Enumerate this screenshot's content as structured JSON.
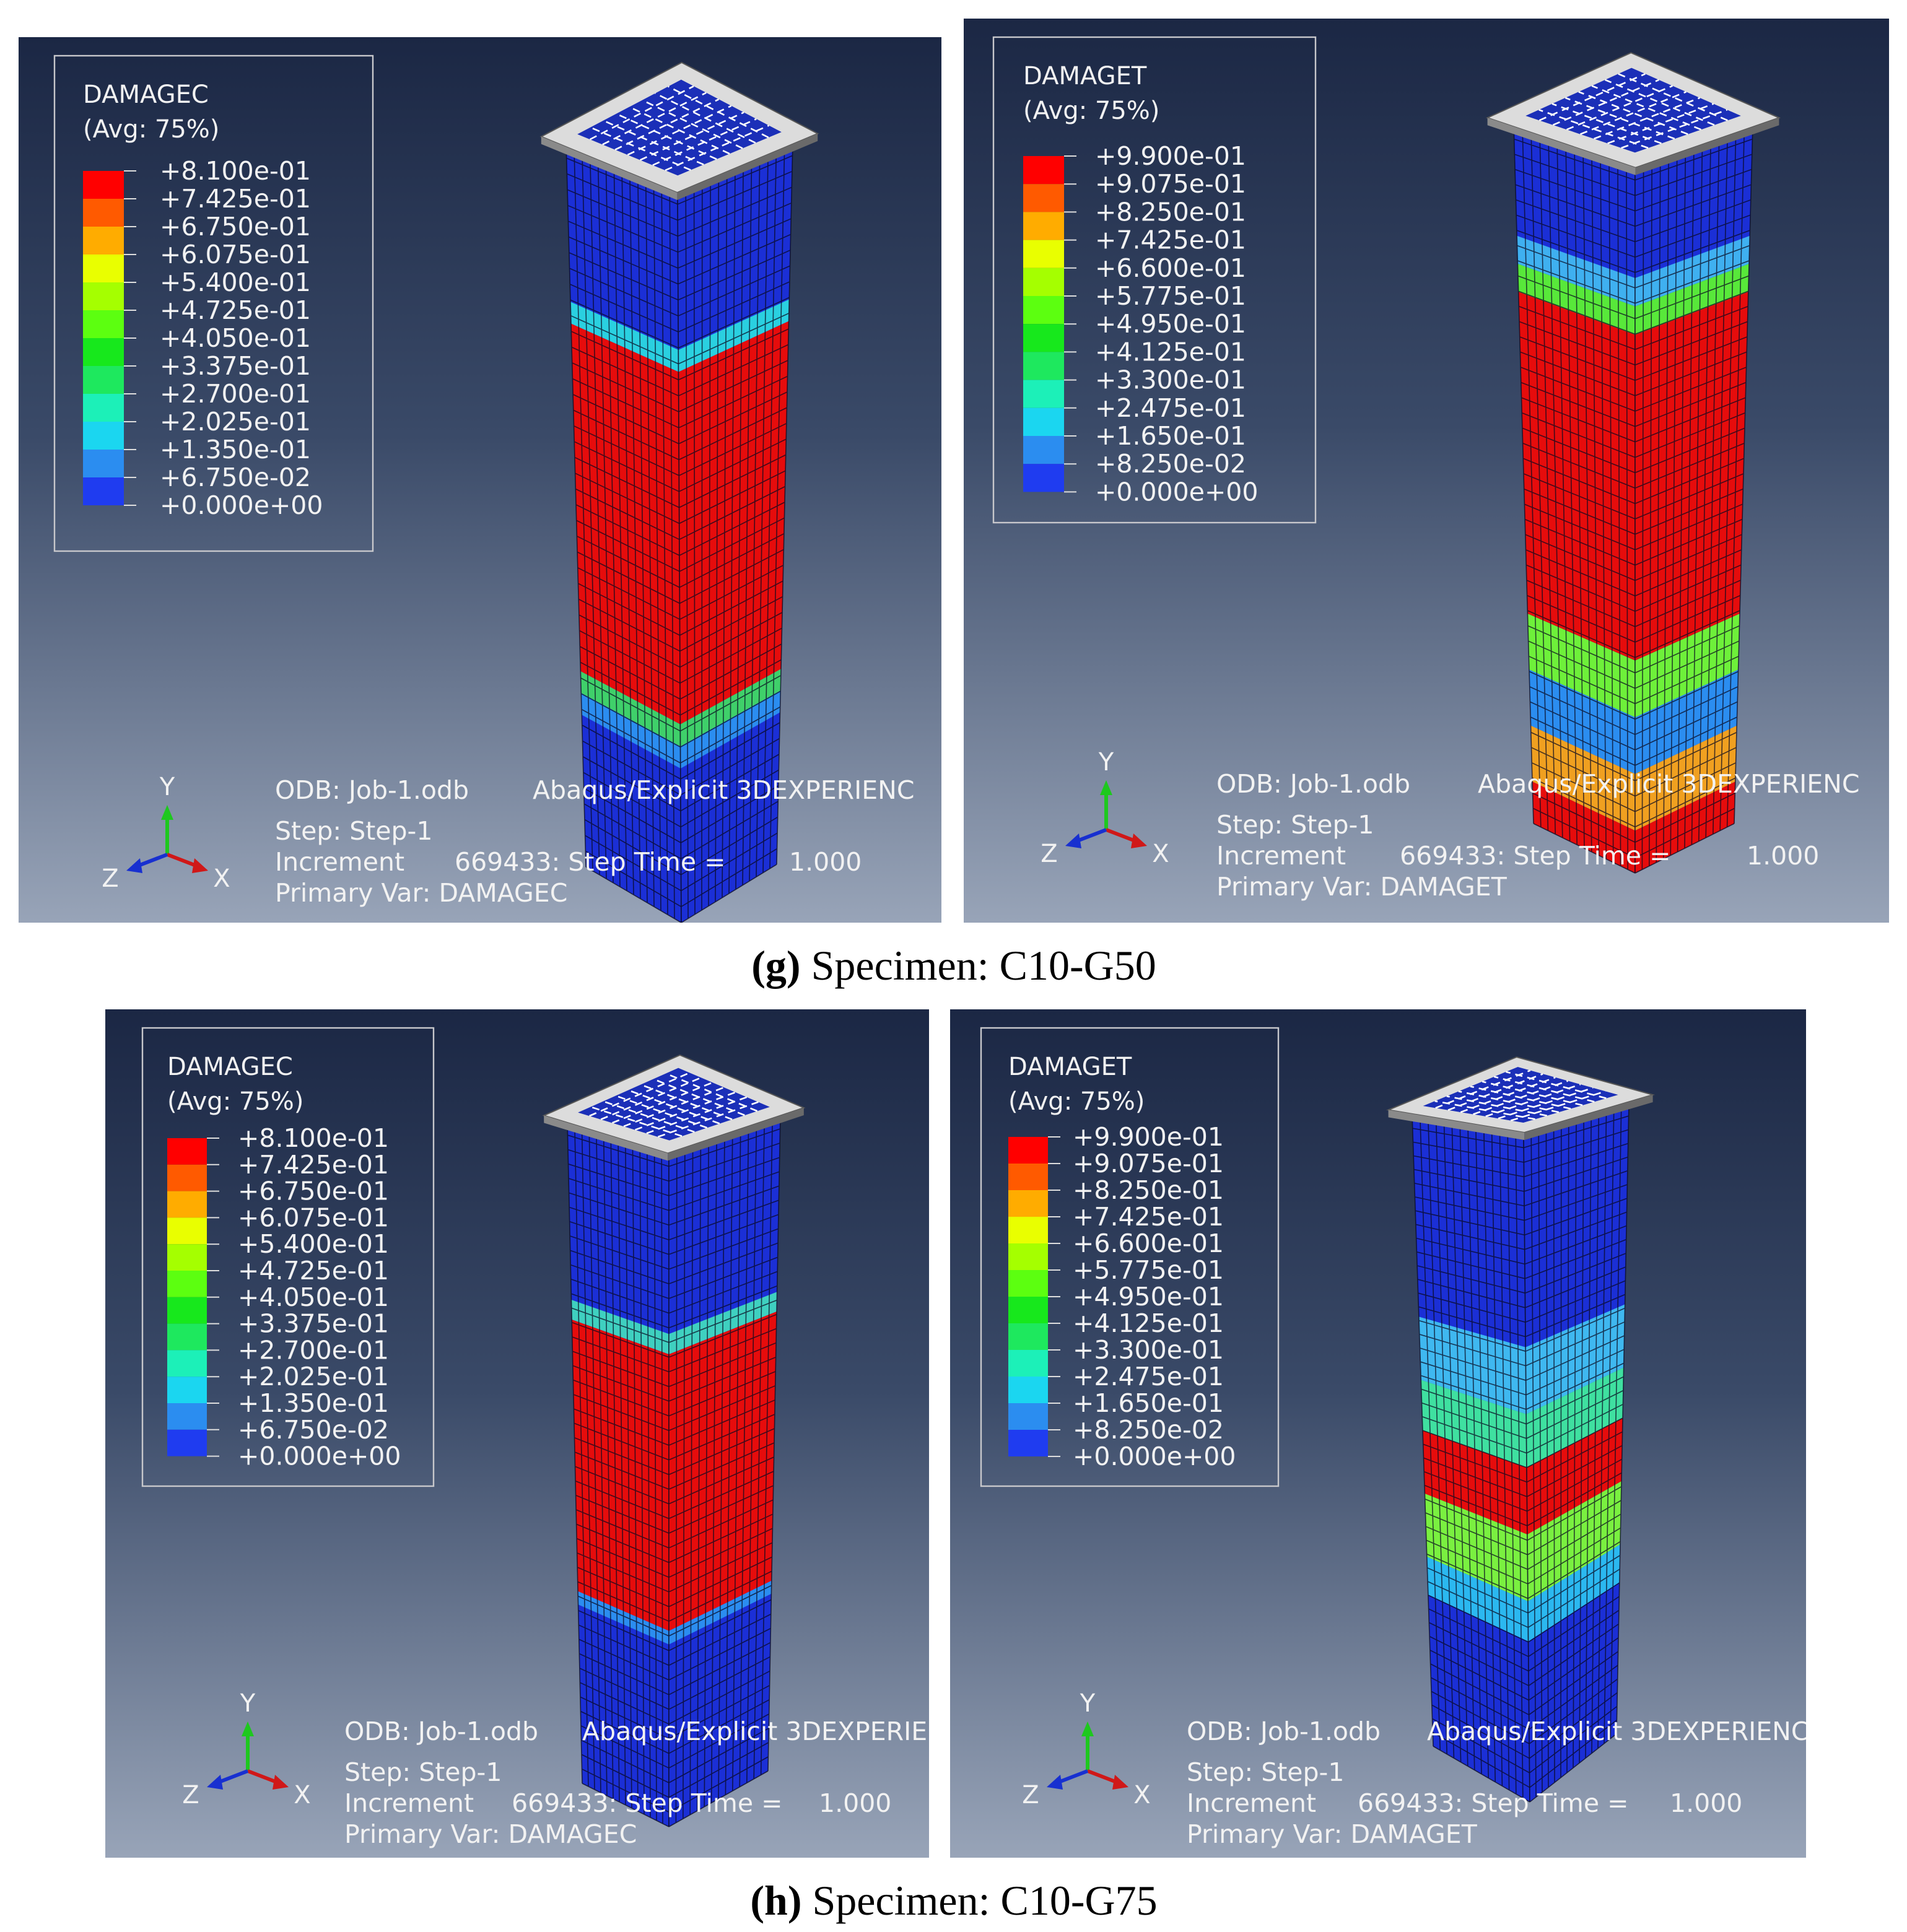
{
  "figure": {
    "panels": [
      {
        "legend": {
          "title": "DAMAGEC",
          "subtitle": "(Avg: 75%)",
          "levels": [
            "+8.100e-01",
            "+7.425e-01",
            "+6.750e-01",
            "+6.075e-01",
            "+5.400e-01",
            "+4.725e-01",
            "+4.050e-01",
            "+3.375e-01",
            "+2.700e-01",
            "+2.025e-01",
            "+1.350e-01",
            "+6.750e-02",
            "+0.000e+00"
          ]
        },
        "info": {
          "odb": "ODB: Job-1.odb",
          "software": "Abaqus/Explicit 3DEXPERIENC",
          "step": "Step: Step-1",
          "increment": "Increment",
          "increment_value": "669433: Step Time =",
          "time": "1.000",
          "primary_var": "Primary Var: DAMAGEC"
        },
        "axes": {
          "y": "Y",
          "z": "Z",
          "x": "X"
        }
      },
      {
        "legend": {
          "title": "DAMAGET",
          "subtitle": "(Avg: 75%)",
          "levels": [
            "+9.900e-01",
            "+9.075e-01",
            "+8.250e-01",
            "+7.425e-01",
            "+6.600e-01",
            "+5.775e-01",
            "+4.950e-01",
            "+4.125e-01",
            "+3.300e-01",
            "+2.475e-01",
            "+1.650e-01",
            "+8.250e-02",
            "+0.000e+00"
          ]
        },
        "info": {
          "odb": "ODB: Job-1.odb",
          "software": "Abaqus/Explicit 3DEXPERIENC",
          "step": "Step: Step-1",
          "increment": "Increment",
          "increment_value": "669433: Step Time =",
          "time": "1.000",
          "primary_var": "Primary Var: DAMAGET"
        },
        "axes": {
          "y": "Y",
          "z": "Z",
          "x": "X"
        }
      },
      {
        "legend": {
          "title": "DAMAGEC",
          "subtitle": "(Avg: 75%)",
          "levels": [
            "+8.100e-01",
            "+7.425e-01",
            "+6.750e-01",
            "+6.075e-01",
            "+5.400e-01",
            "+4.725e-01",
            "+4.050e-01",
            "+3.375e-01",
            "+2.700e-01",
            "+2.025e-01",
            "+1.350e-01",
            "+6.750e-02",
            "+0.000e+00"
          ]
        },
        "info": {
          "odb": "ODB: Job-1.odb",
          "software": "Abaqus/Explicit 3DEXPERIE",
          "step": "Step: Step-1",
          "increment": "Increment",
          "increment_value": "669433: Step Time =",
          "time": "1.000",
          "primary_var": "Primary Var: DAMAGEC"
        },
        "axes": {
          "y": "Y",
          "z": "Z",
          "x": "X"
        }
      },
      {
        "legend": {
          "title": "DAMAGET",
          "subtitle": "(Avg: 75%)",
          "levels": [
            "+9.900e-01",
            "+9.075e-01",
            "+8.250e-01",
            "+7.425e-01",
            "+6.600e-01",
            "+5.775e-01",
            "+4.950e-01",
            "+4.125e-01",
            "+3.300e-01",
            "+2.475e-01",
            "+1.650e-01",
            "+8.250e-02",
            "+0.000e+00"
          ]
        },
        "info": {
          "odb": "ODB: Job-1.odb",
          "software": "Abaqus/Explicit 3DEXPERIENC",
          "step": "Step: Step-1",
          "increment": "Increment",
          "increment_value": "669433: Step Time =",
          "time": "1.000",
          "primary_var": "Primary Var: DAMAGET"
        },
        "axes": {
          "y": "Y",
          "z": "Z",
          "x": "X"
        }
      }
    ],
    "captions": [
      {
        "tag": "(g)",
        "text": "Specimen: C10-G50"
      },
      {
        "tag": "(h)",
        "text": "Specimen: C10-G75"
      }
    ]
  }
}
